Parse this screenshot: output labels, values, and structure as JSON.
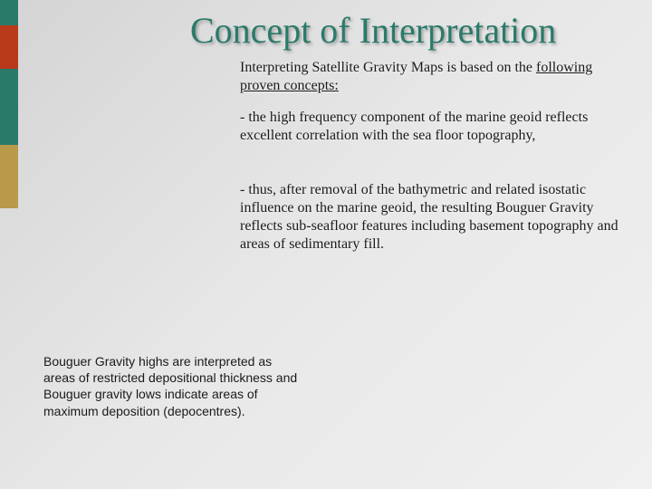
{
  "colors": {
    "teal": "#2a7a6a",
    "red": "#b83a1a",
    "mustard": "#b89a4a",
    "bg_gradient_start": "#d4d4d4",
    "bg_gradient_end": "#f0f0f0",
    "text": "#1a1a1a"
  },
  "typography": {
    "title_fontsize": 40,
    "body_fontsize": 16,
    "footer_fontsize": 14,
    "title_font": "Georgia, serif",
    "body_font": "Georgia, serif",
    "footer_font": "Verdana, sans-serif"
  },
  "title": "Concept of Interpretation",
  "intro_prefix": "Interpreting Satellite Gravity Maps is based on the ",
  "intro_underlined": "following proven concepts:",
  "para1": "- the high frequency component of the marine geoid reflects excellent correlation with the sea floor topography,",
  "para2": "- thus, after removal of the bathymetric and related isostatic influence on the marine geoid, the resulting Bouguer Gravity reflects sub-seafloor features including basement topography and areas of sedimentary fill.",
  "footer": "Bouguer Gravity highs are interpreted as areas of restricted depositional thickness and Bouguer gravity lows indicate areas of maximum deposition (depocentres)."
}
